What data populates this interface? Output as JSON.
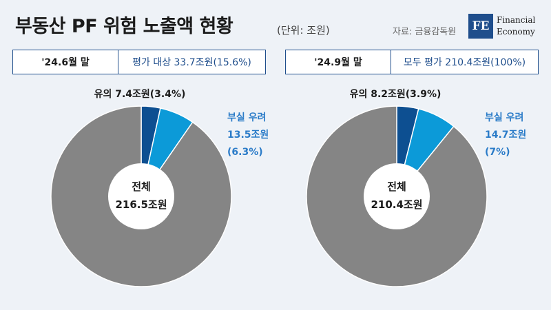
{
  "header": {
    "title": "부동산 PF 위험 노출액 현황",
    "unit": "(단위: 조원)",
    "source": "자료: 금융감독원",
    "logo_mark": "FE",
    "logo_line1": "Financial",
    "logo_line2": "Economy"
  },
  "colors": {
    "caution": "#0d4f91",
    "risk": "#0c9ad8",
    "rest": "#858585",
    "accent": "#1f4e8c"
  },
  "chart_data": [
    {
      "type": "pie",
      "date_label": "'24.6월 말",
      "note": "평가 대상 33.7조원(15.6%)",
      "center_label": "전체",
      "total": 216.5,
      "total_label": "216.5조원",
      "slices": [
        {
          "value": 7.4,
          "percent": 3.4,
          "label_lines": [
            "유의 7.4조원(3.4%)"
          ]
        },
        {
          "value": 13.5,
          "percent": 6.3,
          "label_lines": [
            "부실 우려",
            "13.5조원",
            "(6.3%)"
          ]
        }
      ]
    },
    {
      "type": "pie",
      "date_label": "'24.9월 말",
      "note": "모두 평가 210.4조원(100%)",
      "center_label": "전체",
      "total": 210.4,
      "total_label": "210.4조원",
      "slices": [
        {
          "value": 8.2,
          "percent": 3.9,
          "label_lines": [
            "유의 8.2조원(3.9%)"
          ]
        },
        {
          "value": 14.7,
          "percent": 7,
          "label_lines": [
            "부실 우려",
            "14.7조원",
            "(7%)"
          ]
        }
      ]
    }
  ]
}
